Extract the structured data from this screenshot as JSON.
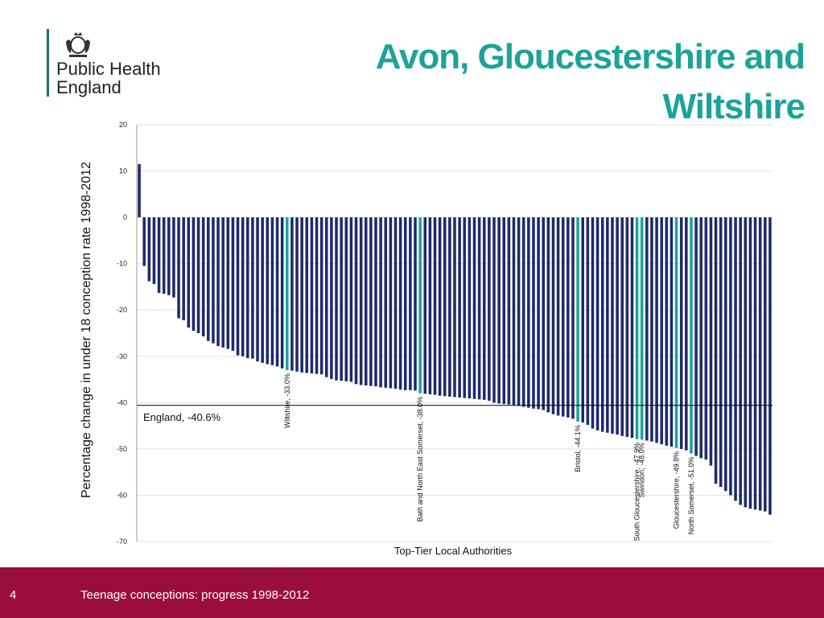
{
  "header": {
    "org_name": "Public Health\nEngland",
    "title": "Avon, Gloucestershire and Wiltshire",
    "crest_icon": "royal-crest-icon"
  },
  "footer": {
    "slide_number": "4",
    "text": "Teenage conceptions: progress 1998-2012"
  },
  "chart_data": {
    "type": "bar",
    "ylabel": "Percentage change in under 18 conception rate 1998-2012",
    "xlabel": "Top-Tier Local Authorities",
    "ylim": [
      -70,
      20
    ],
    "yticks": [
      20,
      10,
      0,
      -10,
      -20,
      -30,
      -40,
      -50,
      -60,
      -70
    ],
    "grid": true,
    "colors": {
      "default": "#1f2a6b",
      "highlight": "#1ba39a"
    },
    "reference_line": {
      "label": "England, -40.6%",
      "value": -40.6
    },
    "values": [
      11.5,
      -10.5,
      -13.8,
      -14.4,
      -16.3,
      -16.5,
      -16.8,
      -17.3,
      -21.8,
      -22.2,
      -23.8,
      -24.5,
      -25,
      -25.7,
      -26.7,
      -27.2,
      -27.8,
      -28.1,
      -28.4,
      -28.8,
      -29.8,
      -30,
      -30.4,
      -30.5,
      -31.1,
      -31.4,
      -31.7,
      -31.9,
      -32.2,
      -32.6,
      -33,
      -33.1,
      -33.3,
      -33.5,
      -33.6,
      -33.7,
      -33.8,
      -33.9,
      -34.5,
      -34.9,
      -35.2,
      -35.3,
      -35.4,
      -35.5,
      -36,
      -36.2,
      -36.3,
      -36.4,
      -36.5,
      -36.7,
      -36.8,
      -36.9,
      -37,
      -37.2,
      -37.3,
      -37.3,
      -37.4,
      -38,
      -38.1,
      -38.2,
      -38.3,
      -38.5,
      -38.6,
      -38.7,
      -38.8,
      -38.9,
      -39,
      -39.1,
      -39.2,
      -39.3,
      -39.4,
      -39.6,
      -40,
      -40.2,
      -40.3,
      -40.4,
      -40.5,
      -40.7,
      -40.9,
      -41.1,
      -41.3,
      -41.4,
      -41.6,
      -42.1,
      -42.5,
      -42.8,
      -43,
      -43.2,
      -43.5,
      -44.1,
      -44.3,
      -44.8,
      -45.6,
      -46,
      -46.3,
      -46.5,
      -46.7,
      -46.9,
      -47.2,
      -47.4,
      -47.6,
      -47.9,
      -48.0,
      -48.2,
      -48.4,
      -48.7,
      -49,
      -49.3,
      -49.5,
      -49.8,
      -50,
      -50.3,
      -51.0,
      -51.5,
      -52,
      -52.3,
      -53.6,
      -57.5,
      -58.2,
      -59.1,
      -60,
      -61.2,
      -62.1,
      -62.6,
      -62.9,
      -63.1,
      -63.3,
      -63.5,
      -64.2
    ],
    "highlights": [
      {
        "index": 30,
        "label": "Wiltshire, -33.0%"
      },
      {
        "index": 57,
        "label": "Bath and North East Somerset, -38.0%"
      },
      {
        "index": 89,
        "label": "Bristol, -44.1%"
      },
      {
        "index": 101,
        "label": "South Gloucestershire, -47.9%"
      },
      {
        "index": 102,
        "label": "Swindon, -48.0%"
      },
      {
        "index": 109,
        "label": "Gloucestershire, -49.8%"
      },
      {
        "index": 112,
        "label": "North Somerset, -51.0%"
      }
    ]
  }
}
